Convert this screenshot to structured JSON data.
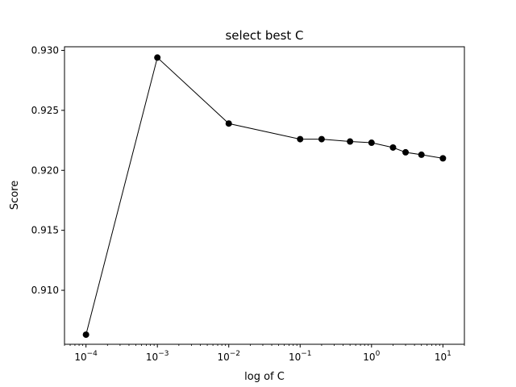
{
  "chart_data": {
    "type": "line",
    "title": "select best C",
    "xlabel": "log of C",
    "ylabel": "Score",
    "xscale": "log",
    "grid": false,
    "legend": "none",
    "xlim": [
      5e-05,
      20
    ],
    "ylim": [
      0.9055,
      0.9303
    ],
    "line_color": "#000000",
    "marker_color": "#000000",
    "x_ticks": [
      {
        "value": 0.0001,
        "base": "10",
        "exp": "−4"
      },
      {
        "value": 0.001,
        "base": "10",
        "exp": "−3"
      },
      {
        "value": 0.01,
        "base": "10",
        "exp": "−2"
      },
      {
        "value": 0.1,
        "base": "10",
        "exp": "−1"
      },
      {
        "value": 1,
        "base": "10",
        "exp": "0"
      },
      {
        "value": 10,
        "base": "10",
        "exp": "1"
      }
    ],
    "y_ticks": [
      {
        "value": 0.91,
        "label": "0.910"
      },
      {
        "value": 0.915,
        "label": "0.915"
      },
      {
        "value": 0.92,
        "label": "0.920"
      },
      {
        "value": 0.925,
        "label": "0.925"
      },
      {
        "value": 0.93,
        "label": "0.930"
      }
    ],
    "series": [
      {
        "x": [
          0.0001,
          0.001,
          0.01,
          0.1,
          0.2,
          0.5,
          1,
          2,
          3,
          5,
          10
        ],
        "y": [
          0.9063,
          0.9294,
          0.9239,
          0.9226,
          0.9226,
          0.9224,
          0.9223,
          0.9219,
          0.9215,
          0.9213,
          0.921
        ]
      }
    ]
  }
}
